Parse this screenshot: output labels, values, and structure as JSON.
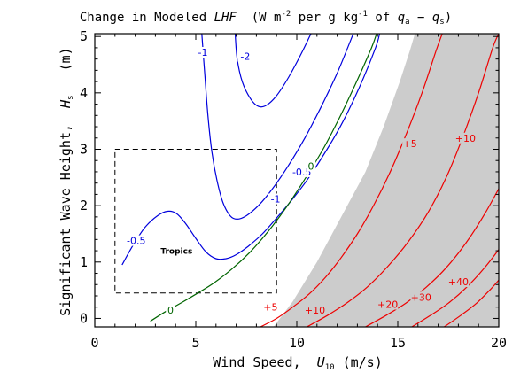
{
  "chart_data": {
    "type": "contour",
    "title": "Change in Modeled LHF (W m⁻² per g kg⁻¹ of qₐ − qₛ)",
    "title_parts": {
      "prefix": "Change in Modeled ",
      "quantity": "LHF",
      "units_open": "  (W m",
      "exp1": "-2",
      "per": " per g kg",
      "exp2": "-1",
      "of": " of ",
      "qa": "q",
      "qa_sub": "a",
      "minus": " − ",
      "qs": "q",
      "qs_sub": "s",
      "units_close": ")"
    },
    "xlabel_parts": {
      "text": "Wind Speed,  ",
      "symbol": "U",
      "sub": "10",
      "units": " (m/s)"
    },
    "ylabel_parts": {
      "text": "Significant Wave Height,  ",
      "symbol": "H",
      "sub": "s",
      "units": "   (m)"
    },
    "xlim": [
      0,
      20
    ],
    "ylim": [
      -0.15,
      5.05
    ],
    "x_ticks": [
      0,
      5,
      10,
      15,
      20
    ],
    "y_ticks": [
      0,
      1,
      2,
      3,
      4,
      5
    ],
    "x_tick_labels": [
      "0",
      "5",
      "10",
      "15",
      "20"
    ],
    "y_tick_labels": [
      "0",
      "1",
      "2",
      "3",
      "4",
      "5"
    ],
    "colors": {
      "negative": "#0000dd",
      "zero": "#006400",
      "positive": "#ee0000",
      "masked": "#cccccc",
      "box": "#000000"
    },
    "masked_region": {
      "description": "grey region",
      "boundary": [
        [
          8.85,
          -0.15
        ],
        [
          9.8,
          0.3
        ],
        [
          11.0,
          1.0
        ],
        [
          12.2,
          1.8
        ],
        [
          13.4,
          2.6
        ],
        [
          14.3,
          3.4
        ],
        [
          15.1,
          4.2
        ],
        [
          15.6,
          4.75
        ],
        [
          15.85,
          5.05
        ],
        [
          20,
          5.05
        ],
        [
          20,
          -0.15
        ]
      ]
    },
    "tropics_box": {
      "label": "Tropics",
      "x": [
        1.0,
        9.0
      ],
      "y": [
        0.45,
        3.0
      ]
    },
    "series": [
      {
        "name": "-2",
        "level": -2,
        "kind": "negative",
        "points": [
          [
            6.95,
            5.05
          ],
          [
            7.05,
            4.6
          ],
          [
            7.3,
            4.2
          ],
          [
            7.7,
            3.9
          ],
          [
            8.1,
            3.76
          ],
          [
            8.5,
            3.78
          ],
          [
            9.0,
            3.95
          ],
          [
            9.6,
            4.28
          ],
          [
            10.3,
            4.75
          ],
          [
            10.7,
            5.05
          ]
        ],
        "labels": [
          {
            "text": "-2",
            "x": 7.45,
            "y": 4.65
          }
        ]
      },
      {
        "name": "-1",
        "level": -1,
        "kind": "negative",
        "points": [
          [
            5.3,
            5.05
          ],
          [
            5.45,
            4.3
          ],
          [
            5.6,
            3.6
          ],
          [
            5.8,
            2.95
          ],
          [
            6.05,
            2.45
          ],
          [
            6.35,
            2.05
          ],
          [
            6.7,
            1.82
          ],
          [
            7.05,
            1.76
          ],
          [
            7.5,
            1.82
          ],
          [
            8.1,
            2.0
          ],
          [
            8.8,
            2.3
          ],
          [
            9.6,
            2.72
          ],
          [
            10.4,
            3.2
          ],
          [
            11.2,
            3.75
          ],
          [
            12.0,
            4.35
          ],
          [
            12.8,
            5.05
          ]
        ],
        "labels": [
          {
            "text": "-1",
            "x": 5.35,
            "y": 4.72
          },
          {
            "text": "-1",
            "x": 8.95,
            "y": 2.12
          }
        ]
      },
      {
        "name": "-0.5",
        "level": -0.5,
        "kind": "negative",
        "points": [
          [
            1.35,
            0.95
          ],
          [
            1.9,
            1.3
          ],
          [
            2.5,
            1.62
          ],
          [
            3.1,
            1.82
          ],
          [
            3.6,
            1.9
          ],
          [
            4.05,
            1.86
          ],
          [
            4.5,
            1.68
          ],
          [
            5.0,
            1.42
          ],
          [
            5.5,
            1.18
          ],
          [
            6.0,
            1.06
          ],
          [
            6.5,
            1.06
          ],
          [
            7.0,
            1.13
          ],
          [
            7.6,
            1.28
          ],
          [
            8.3,
            1.5
          ],
          [
            9.0,
            1.78
          ],
          [
            9.8,
            2.12
          ],
          [
            10.6,
            2.5
          ],
          [
            11.5,
            3.0
          ],
          [
            12.3,
            3.5
          ],
          [
            13.1,
            4.1
          ],
          [
            13.9,
            4.8
          ],
          [
            14.1,
            5.05
          ]
        ],
        "labels": [
          {
            "text": "-0.5",
            "x": 2.05,
            "y": 1.38
          },
          {
            "text": "-0.5",
            "x": 10.25,
            "y": 2.6
          }
        ]
      },
      {
        "name": "0",
        "level": 0,
        "kind": "zero",
        "points": [
          [
            2.75,
            -0.05
          ],
          [
            3.5,
            0.12
          ],
          [
            4.3,
            0.28
          ],
          [
            5.1,
            0.45
          ],
          [
            5.9,
            0.63
          ],
          [
            6.8,
            0.88
          ],
          [
            7.7,
            1.18
          ],
          [
            8.6,
            1.55
          ],
          [
            9.5,
            1.98
          ],
          [
            10.4,
            2.47
          ],
          [
            11.3,
            3.0
          ],
          [
            12.1,
            3.55
          ],
          [
            12.9,
            4.15
          ],
          [
            13.7,
            4.8
          ],
          [
            13.95,
            5.05
          ]
        ],
        "labels": [
          {
            "text": "0",
            "x": 3.75,
            "y": 0.15
          },
          {
            "text": "0",
            "x": 10.7,
            "y": 2.7
          }
        ]
      },
      {
        "name": "+5",
        "level": 5,
        "kind": "positive",
        "points": [
          [
            8.2,
            -0.15
          ],
          [
            9.0,
            0.0
          ],
          [
            9.8,
            0.2
          ],
          [
            10.6,
            0.43
          ],
          [
            11.4,
            0.72
          ],
          [
            12.2,
            1.08
          ],
          [
            13.0,
            1.5
          ],
          [
            13.8,
            2.0
          ],
          [
            14.6,
            2.58
          ],
          [
            15.4,
            3.25
          ],
          [
            16.2,
            4.0
          ],
          [
            16.9,
            4.75
          ],
          [
            17.2,
            5.05
          ]
        ],
        "labels": [
          {
            "text": "+5",
            "x": 8.7,
            "y": 0.2
          },
          {
            "text": "+5",
            "x": 15.6,
            "y": 3.1
          }
        ]
      },
      {
        "name": "+10",
        "level": 10,
        "kind": "positive",
        "points": [
          [
            10.5,
            -0.15
          ],
          [
            11.5,
            0.05
          ],
          [
            12.5,
            0.28
          ],
          [
            13.5,
            0.56
          ],
          [
            14.5,
            0.92
          ],
          [
            15.5,
            1.35
          ],
          [
            16.5,
            1.88
          ],
          [
            17.4,
            2.5
          ],
          [
            18.2,
            3.2
          ],
          [
            19.0,
            4.0
          ],
          [
            19.7,
            4.8
          ],
          [
            20.0,
            5.05
          ]
        ],
        "labels": [
          {
            "text": "+10",
            "x": 10.9,
            "y": 0.15
          },
          {
            "text": "+10",
            "x": 18.35,
            "y": 3.2
          }
        ]
      },
      {
        "name": "+20",
        "level": 20,
        "kind": "positive",
        "points": [
          [
            13.4,
            -0.15
          ],
          [
            14.4,
            0.05
          ],
          [
            15.4,
            0.27
          ],
          [
            16.4,
            0.55
          ],
          [
            17.4,
            0.9
          ],
          [
            18.4,
            1.35
          ],
          [
            19.3,
            1.85
          ],
          [
            20.0,
            2.3
          ]
        ],
        "labels": [
          {
            "text": "+20",
            "x": 14.5,
            "y": 0.25
          }
        ]
      },
      {
        "name": "+30",
        "level": 30,
        "kind": "positive",
        "points": [
          [
            15.7,
            -0.15
          ],
          [
            16.6,
            0.05
          ],
          [
            17.5,
            0.27
          ],
          [
            18.4,
            0.55
          ],
          [
            19.3,
            0.9
          ],
          [
            20.0,
            1.22
          ]
        ],
        "labels": [
          {
            "text": "+30",
            "x": 16.15,
            "y": 0.38
          }
        ]
      },
      {
        "name": "+40",
        "level": 40,
        "kind": "positive",
        "points": [
          [
            17.3,
            -0.15
          ],
          [
            18.1,
            0.05
          ],
          [
            18.9,
            0.27
          ],
          [
            19.6,
            0.52
          ],
          [
            20.0,
            0.68
          ]
        ],
        "labels": [
          {
            "text": "+40",
            "x": 18.0,
            "y": 0.65
          }
        ]
      }
    ]
  }
}
